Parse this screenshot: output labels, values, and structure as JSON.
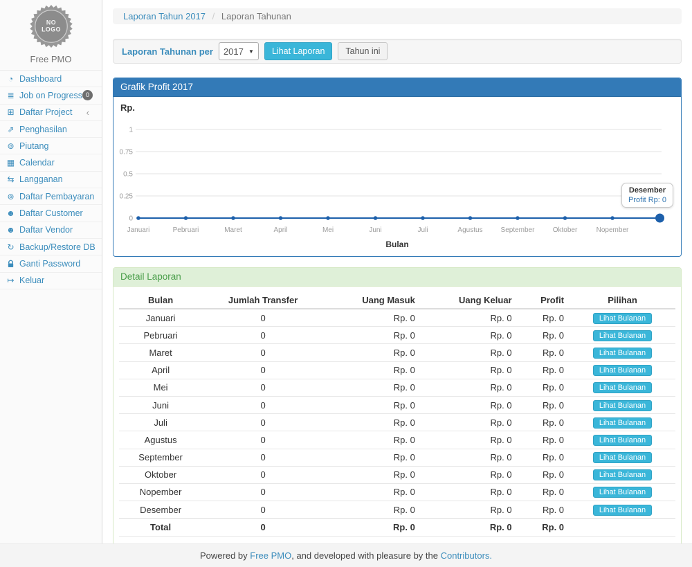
{
  "app": {
    "name": "Free PMO",
    "logo_text_line1": "NO",
    "logo_text_line2": "LOGO"
  },
  "sidebar": {
    "items": [
      {
        "label": "Dashboard",
        "icon": "dashboard-icon"
      },
      {
        "label": "Job on Progress",
        "icon": "tasks-icon",
        "badge": "0"
      },
      {
        "label": "Daftar Project",
        "icon": "table-icon",
        "chevron": "‹"
      },
      {
        "label": "Penghasilan",
        "icon": "line-chart-icon"
      },
      {
        "label": "Piutang",
        "icon": "money-icon"
      },
      {
        "label": "Calendar",
        "icon": "calendar-icon"
      },
      {
        "label": "Langganan",
        "icon": "retweet-icon"
      },
      {
        "label": "Daftar Pembayaran",
        "icon": "money-icon"
      },
      {
        "label": "Daftar Customer",
        "icon": "users-icon"
      },
      {
        "label": "Daftar Vendor",
        "icon": "users-icon"
      },
      {
        "label": "Backup/Restore DB",
        "icon": "refresh-icon"
      },
      {
        "label": "Ganti Password",
        "icon": "lock-icon"
      },
      {
        "label": "Keluar",
        "icon": "sign-out-icon"
      }
    ]
  },
  "breadcrumb": {
    "link": "Laporan Tahun 2017",
    "separator": "/",
    "current": "Laporan Tahunan"
  },
  "filter_bar": {
    "label": "Laporan Tahunan per",
    "year_select": {
      "value": "2017"
    },
    "submit_label": "Lihat Laporan",
    "this_year_label": "Tahun ini"
  },
  "chart_panel": {
    "title": "Grafik Profit 2017"
  },
  "chart_data": {
    "type": "line",
    "title": "Grafik Profit 2017",
    "categories": [
      "Januari",
      "Pebruari",
      "Maret",
      "April",
      "Mei",
      "Juni",
      "Juli",
      "Agustus",
      "September",
      "Oktober",
      "Nopember",
      "Desember"
    ],
    "series": [
      {
        "name": "Profit",
        "values": [
          0,
          0,
          0,
          0,
          0,
          0,
          0,
          0,
          0,
          0,
          0,
          0
        ]
      }
    ],
    "xlabel": "Bulan",
    "ylabel": "Rp.",
    "ylim": [
      0,
      1
    ],
    "yticks": [
      0,
      0.25,
      0.5,
      0.75,
      1
    ],
    "grid": true,
    "legend": "none",
    "line_color": "#1d60ab",
    "highlight_point_index": 11,
    "x_axis_labels_shown": [
      "Januari",
      "Pebruari",
      "Maret",
      "April",
      "Mei",
      "Juni",
      "Juli",
      "Agustus",
      "September",
      "Oktober",
      "Nopember"
    ],
    "tooltip": {
      "title": "Desember",
      "text": "Profit Rp: 0"
    }
  },
  "detail_panel": {
    "title": "Detail Laporan",
    "table": {
      "headers": [
        "Bulan",
        "Jumlah Transfer",
        "Uang Masuk",
        "Uang Keluar",
        "Profit",
        "Pilihan"
      ],
      "action_label": "Lihat Bulanan",
      "rows": [
        {
          "bulan": "Januari",
          "jumlah_transfer": "0",
          "uang_masuk": "Rp. 0",
          "uang_keluar": "Rp. 0",
          "profit": "Rp. 0",
          "action": "Lihat Bulanan"
        },
        {
          "bulan": "Pebruari",
          "jumlah_transfer": "0",
          "uang_masuk": "Rp. 0",
          "uang_keluar": "Rp. 0",
          "profit": "Rp. 0",
          "action": "Lihat Bulanan"
        },
        {
          "bulan": "Maret",
          "jumlah_transfer": "0",
          "uang_masuk": "Rp. 0",
          "uang_keluar": "Rp. 0",
          "profit": "Rp. 0",
          "action": "Lihat Bulanan"
        },
        {
          "bulan": "April",
          "jumlah_transfer": "0",
          "uang_masuk": "Rp. 0",
          "uang_keluar": "Rp. 0",
          "profit": "Rp. 0",
          "action": "Lihat Bulanan"
        },
        {
          "bulan": "Mei",
          "jumlah_transfer": "0",
          "uang_masuk": "Rp. 0",
          "uang_keluar": "Rp. 0",
          "profit": "Rp. 0",
          "action": "Lihat Bulanan"
        },
        {
          "bulan": "Juni",
          "jumlah_transfer": "0",
          "uang_masuk": "Rp. 0",
          "uang_keluar": "Rp. 0",
          "profit": "Rp. 0",
          "action": "Lihat Bulanan"
        },
        {
          "bulan": "Juli",
          "jumlah_transfer": "0",
          "uang_masuk": "Rp. 0",
          "uang_keluar": "Rp. 0",
          "profit": "Rp. 0",
          "action": "Lihat Bulanan"
        },
        {
          "bulan": "Agustus",
          "jumlah_transfer": "0",
          "uang_masuk": "Rp. 0",
          "uang_keluar": "Rp. 0",
          "profit": "Rp. 0",
          "action": "Lihat Bulanan"
        },
        {
          "bulan": "September",
          "jumlah_transfer": "0",
          "uang_masuk": "Rp. 0",
          "uang_keluar": "Rp. 0",
          "profit": "Rp. 0",
          "action": "Lihat Bulanan"
        },
        {
          "bulan": "Oktober",
          "jumlah_transfer": "0",
          "uang_masuk": "Rp. 0",
          "uang_keluar": "Rp. 0",
          "profit": "Rp. 0",
          "action": "Lihat Bulanan"
        },
        {
          "bulan": "Nopember",
          "jumlah_transfer": "0",
          "uang_masuk": "Rp. 0",
          "uang_keluar": "Rp. 0",
          "profit": "Rp. 0",
          "action": "Lihat Bulanan"
        },
        {
          "bulan": "Desember",
          "jumlah_transfer": "0",
          "uang_masuk": "Rp. 0",
          "uang_keluar": "Rp. 0",
          "profit": "Rp. 0",
          "action": "Lihat Bulanan"
        }
      ],
      "total": {
        "label": "Total",
        "jumlah_transfer": "0",
        "uang_masuk": "Rp. 0",
        "uang_keluar": "Rp. 0",
        "profit": "Rp. 0"
      }
    }
  },
  "footer": {
    "prefix": "Powered by ",
    "link1": "Free PMO",
    "middle": ", and developed with pleasure by the ",
    "link2": "Contributors."
  },
  "colors": {
    "link_blue": "#3c8dbc",
    "panel_primary": "#337ab7",
    "panel_success_bg": "#dff0d8",
    "panel_success_text": "#4a9e4a",
    "button_cyan": "#3ab6d9",
    "chart_line": "#1d60ab",
    "badge_gray": "#6e6e6e"
  }
}
